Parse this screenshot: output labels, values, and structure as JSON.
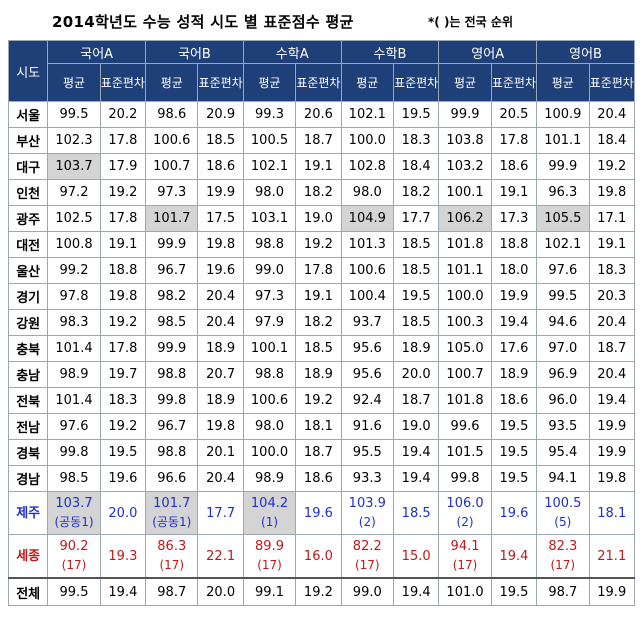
{
  "title": "2014학년도 수능 성적 시도 별 표준점수 평균",
  "note": "*( )는 전국 순위",
  "header": {
    "area_label": "시도",
    "subjects": [
      "국어A",
      "국어B",
      "수학A",
      "수학B",
      "영어A",
      "영어B"
    ],
    "avg_label": "평균",
    "sd_label": "표준편차"
  },
  "rows": [
    {
      "region": "서울",
      "cells": [
        [
          "99.5",
          "20.2"
        ],
        [
          "98.6",
          "20.9"
        ],
        [
          "99.3",
          "20.6"
        ],
        [
          "102.1",
          "19.5"
        ],
        [
          "99.9",
          "20.5"
        ],
        [
          "100.9",
          "20.4"
        ]
      ],
      "highlight": []
    },
    {
      "region": "부산",
      "cells": [
        [
          "102.3",
          "17.8"
        ],
        [
          "100.6",
          "18.5"
        ],
        [
          "100.5",
          "18.7"
        ],
        [
          "100.0",
          "18.3"
        ],
        [
          "103.8",
          "17.8"
        ],
        [
          "101.1",
          "18.4"
        ]
      ],
      "highlight": []
    },
    {
      "region": "대구",
      "cells": [
        [
          "103.7",
          "17.9"
        ],
        [
          "100.7",
          "18.6"
        ],
        [
          "102.1",
          "19.1"
        ],
        [
          "102.8",
          "18.4"
        ],
        [
          "103.2",
          "18.6"
        ],
        [
          "99.9",
          "19.2"
        ]
      ],
      "highlight": [
        0
      ]
    },
    {
      "region": "인천",
      "cells": [
        [
          "97.2",
          "19.2"
        ],
        [
          "97.3",
          "19.9"
        ],
        [
          "98.0",
          "18.2"
        ],
        [
          "98.0",
          "18.2"
        ],
        [
          "100.1",
          "19.1"
        ],
        [
          "96.3",
          "19.8"
        ]
      ],
      "highlight": []
    },
    {
      "region": "광주",
      "cells": [
        [
          "102.5",
          "17.8"
        ],
        [
          "101.7",
          "17.5"
        ],
        [
          "103.1",
          "19.0"
        ],
        [
          "104.9",
          "17.7"
        ],
        [
          "106.2",
          "17.3"
        ],
        [
          "105.5",
          "17.1"
        ]
      ],
      "highlight": [
        1,
        3,
        4,
        5
      ]
    },
    {
      "region": "대전",
      "cells": [
        [
          "100.8",
          "19.1"
        ],
        [
          "99.9",
          "19.8"
        ],
        [
          "98.8",
          "19.2"
        ],
        [
          "101.3",
          "18.5"
        ],
        [
          "101.8",
          "18.8"
        ],
        [
          "102.1",
          "19.1"
        ]
      ],
      "highlight": []
    },
    {
      "region": "울산",
      "cells": [
        [
          "99.2",
          "18.8"
        ],
        [
          "96.7",
          "19.6"
        ],
        [
          "99.0",
          "17.8"
        ],
        [
          "100.6",
          "18.5"
        ],
        [
          "101.1",
          "18.0"
        ],
        [
          "97.6",
          "18.3"
        ]
      ],
      "highlight": []
    },
    {
      "region": "경기",
      "cells": [
        [
          "97.8",
          "19.8"
        ],
        [
          "98.2",
          "20.4"
        ],
        [
          "97.3",
          "19.1"
        ],
        [
          "100.4",
          "19.5"
        ],
        [
          "100.0",
          "19.9"
        ],
        [
          "99.5",
          "20.3"
        ]
      ],
      "highlight": []
    },
    {
      "region": "강원",
      "cells": [
        [
          "98.3",
          "19.2"
        ],
        [
          "98.5",
          "20.4"
        ],
        [
          "97.9",
          "18.2"
        ],
        [
          "93.7",
          "18.5"
        ],
        [
          "100.3",
          "19.4"
        ],
        [
          "94.6",
          "20.4"
        ]
      ],
      "highlight": []
    },
    {
      "region": "충북",
      "cells": [
        [
          "101.4",
          "17.8"
        ],
        [
          "99.9",
          "18.9"
        ],
        [
          "100.1",
          "18.5"
        ],
        [
          "95.6",
          "18.9"
        ],
        [
          "105.0",
          "17.6"
        ],
        [
          "97.0",
          "18.7"
        ]
      ],
      "highlight": []
    },
    {
      "region": "충남",
      "cells": [
        [
          "98.9",
          "19.7"
        ],
        [
          "98.8",
          "20.7"
        ],
        [
          "98.8",
          "18.9"
        ],
        [
          "95.6",
          "20.0"
        ],
        [
          "100.7",
          "18.9"
        ],
        [
          "96.9",
          "20.4"
        ]
      ],
      "highlight": []
    },
    {
      "region": "전북",
      "cells": [
        [
          "101.4",
          "18.3"
        ],
        [
          "99.8",
          "18.9"
        ],
        [
          "100.6",
          "19.2"
        ],
        [
          "92.4",
          "18.7"
        ],
        [
          "101.8",
          "18.6"
        ],
        [
          "96.0",
          "19.4"
        ]
      ],
      "highlight": []
    },
    {
      "region": "전남",
      "cells": [
        [
          "97.6",
          "19.2"
        ],
        [
          "96.7",
          "19.8"
        ],
        [
          "98.0",
          "18.1"
        ],
        [
          "91.6",
          "19.0"
        ],
        [
          "99.6",
          "19.5"
        ],
        [
          "93.5",
          "19.9"
        ]
      ],
      "highlight": []
    },
    {
      "region": "경북",
      "cells": [
        [
          "99.8",
          "19.5"
        ],
        [
          "98.8",
          "20.1"
        ],
        [
          "100.0",
          "18.7"
        ],
        [
          "95.5",
          "19.4"
        ],
        [
          "101.5",
          "19.5"
        ],
        [
          "95.4",
          "19.9"
        ]
      ],
      "highlight": []
    },
    {
      "region": "경남",
      "cells": [
        [
          "98.5",
          "19.6"
        ],
        [
          "96.6",
          "20.4"
        ],
        [
          "98.9",
          "18.6"
        ],
        [
          "93.3",
          "19.4"
        ],
        [
          "99.8",
          "19.5"
        ],
        [
          "94.1",
          "19.8"
        ]
      ],
      "highlight": []
    }
  ],
  "jeju": {
    "region": "제주",
    "cells": [
      {
        "avg": "103.7",
        "rank": "(공동1)",
        "sd": "20.0"
      },
      {
        "avg": "101.7",
        "rank": "(공동1)",
        "sd": "17.7"
      },
      {
        "avg": "104.2",
        "rank": "(1)",
        "sd": "19.6"
      },
      {
        "avg": "103.9",
        "rank": "(2)",
        "sd": "18.5"
      },
      {
        "avg": "106.0",
        "rank": "(2)",
        "sd": "19.6"
      },
      {
        "avg": "100.5",
        "rank": "(5)",
        "sd": "18.1"
      }
    ],
    "highlight": [
      0,
      1,
      2
    ]
  },
  "sejong": {
    "region": "세종",
    "cells": [
      {
        "avg": "90.2",
        "rank": "(17)",
        "sd": "19.3"
      },
      {
        "avg": "86.3",
        "rank": "(17)",
        "sd": "22.1"
      },
      {
        "avg": "89.9",
        "rank": "(17)",
        "sd": "16.0"
      },
      {
        "avg": "82.2",
        "rank": "(17)",
        "sd": "15.0"
      },
      {
        "avg": "94.1",
        "rank": "(17)",
        "sd": "19.4"
      },
      {
        "avg": "82.3",
        "rank": "(17)",
        "sd": "21.1"
      }
    ]
  },
  "total": {
    "region": "전체",
    "cells": [
      [
        "99.5",
        "19.4"
      ],
      [
        "98.7",
        "20.0"
      ],
      [
        "99.1",
        "19.2"
      ],
      [
        "99.0",
        "19.4"
      ],
      [
        "101.0",
        "19.5"
      ],
      [
        "98.7",
        "19.9"
      ]
    ]
  },
  "colors": {
    "header_bg": "#1f3f78",
    "highlight_bg": "#d4d4d4",
    "jeju_text": "#1f2fd0",
    "sejong_text": "#c01818"
  }
}
